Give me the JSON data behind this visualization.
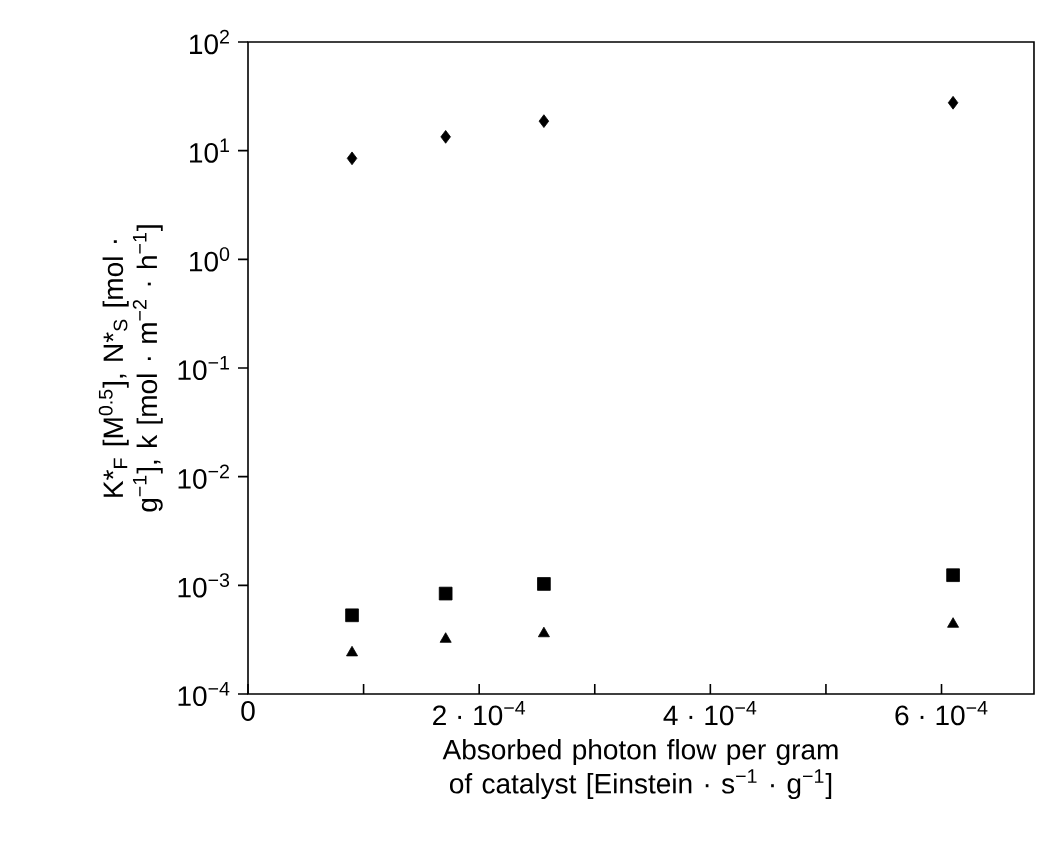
{
  "chart_data": {
    "type": "scatter",
    "xlabel": "Absorbed photon flow per gram of catalyst [Einstein · s$^{−1}$ · g$^{−1}$]",
    "ylabel": "K*$_{F}$ [M$^{0.5}$], N*$_{S}$ [mol · g$^{−1}$], k [mol · m$^{−2}$ · h$^{−1}$]",
    "x": [
      9e-05,
      0.000171,
      0.000256,
      0.00061
    ],
    "series": [
      {
        "color": "#000000",
        "marker": "diamond",
        "values": [
          8.5,
          13.4,
          18.7,
          27.6
        ]
      },
      {
        "color": "#000000",
        "marker": "square",
        "values": [
          0.00053,
          0.00084,
          0.00103,
          0.00124
        ]
      },
      {
        "color": "#000000",
        "marker": "triangle",
        "values": [
          0.00024,
          0.00032,
          0.00036,
          0.00044
        ]
      }
    ],
    "log": "y",
    "grid": false,
    "xlim": [
      0,
      0.00068
    ],
    "ylim": [
      0.0001,
      100
    ],
    "xticks": [
      0,
      {
        "value": 0.0001,
        "label": null
      },
      {
        "value": 0.0002,
        "label": "2 · 10$^{−4}$"
      },
      {
        "value": 0.0003,
        "label": null
      },
      {
        "value": 0.0004,
        "label": "4 · 10$^{−4}$"
      },
      {
        "value": 0.0005,
        "label": null
      },
      {
        "value": 0.0006,
        "label": "6 · 10$^{−4}$"
      }
    ],
    "yticks": [
      {
        "value": 0.0001,
        "label": "10$^{−4}$"
      },
      {
        "value": 0.001,
        "label": "10$^{−3}$"
      },
      {
        "value": 0.01,
        "label": "10$^{−2}$"
      },
      {
        "value": 0.1,
        "label": "10$^{−1}$"
      },
      {
        "value": 1,
        "label": "10$^{0}$"
      },
      {
        "value": 10,
        "label": "10$^{1}$"
      },
      {
        "value": 100,
        "label": "10$^{2}$"
      }
    ]
  }
}
